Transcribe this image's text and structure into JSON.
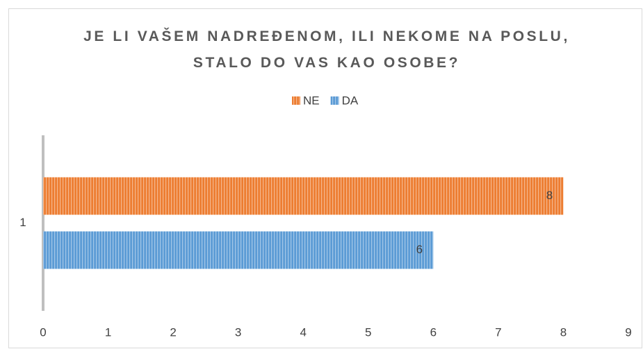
{
  "chart_data": {
    "type": "hbar",
    "title": "JE LI VAŠEM NADREĐENOM, ILI NEKOME NA POSLU, STALO DO VAS KAO OSOBE?",
    "categories": [
      "1"
    ],
    "series": [
      {
        "name": "NE",
        "color": "#ED7D31",
        "values": [
          8
        ]
      },
      {
        "name": "DA",
        "color": "#5B9BD5",
        "values": [
          6
        ]
      }
    ],
    "xlim": [
      0,
      9
    ],
    "xticks": [
      0,
      1,
      2,
      3,
      4,
      5,
      6,
      7,
      8,
      9
    ],
    "grid": false,
    "legend": "top"
  }
}
